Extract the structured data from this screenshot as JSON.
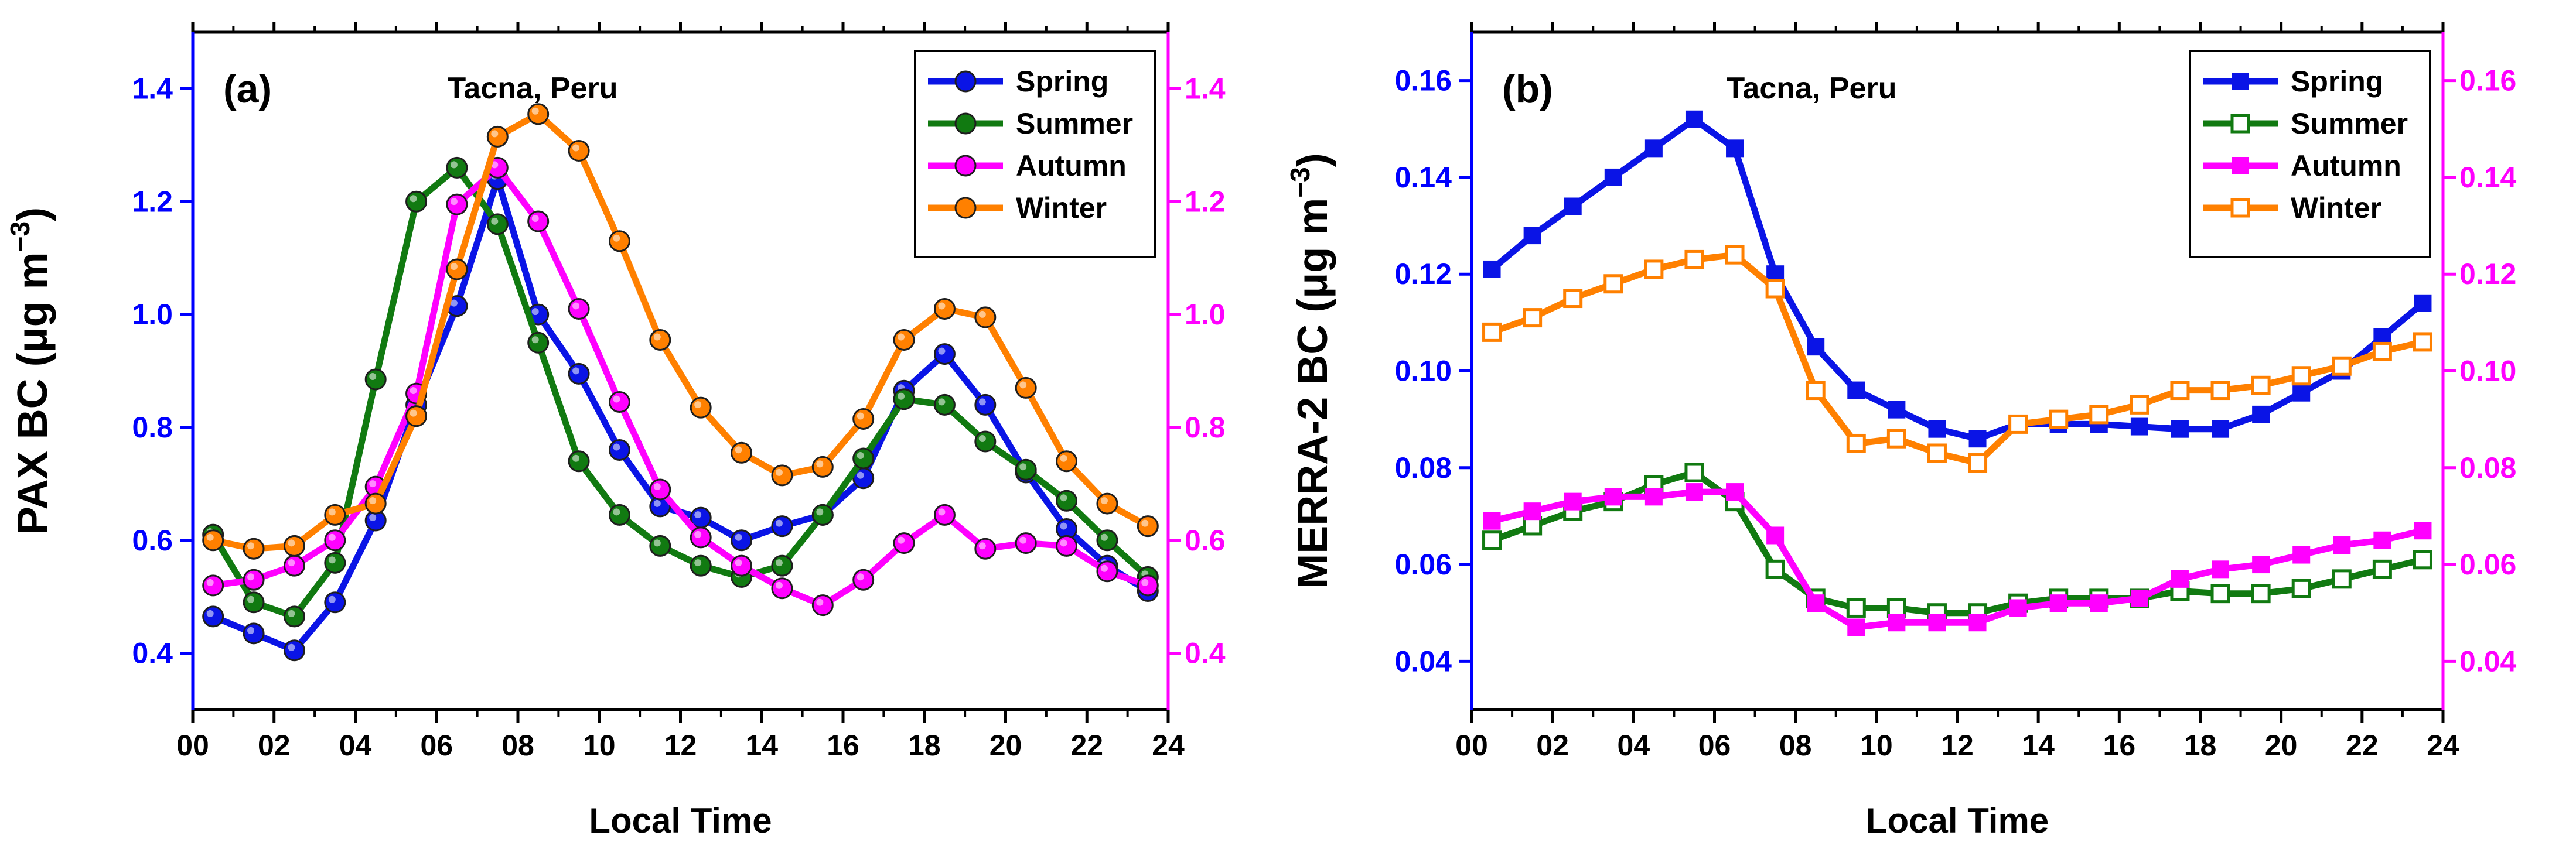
{
  "colors": {
    "spring": "#0a14e6",
    "summer": "#117a11",
    "autumn": "#ff00ff",
    "winter": "#ff8000",
    "left_axis": "#0000ff",
    "right_axis": "#ff00ff",
    "black": "#000000"
  },
  "chart_data": [
    {
      "type": "line",
      "panel_label": "(a)",
      "title": "Tacna, Peru",
      "xlabel": "Local Time",
      "ylabel_main": "PAX BC (",
      "ylabel_unit": "μg m",
      "ylabel_exp": "−3",
      "ylabel_close": ")",
      "xlim": [
        0,
        24
      ],
      "ylim": [
        0.3,
        1.5
      ],
      "x_ticks": [
        "00",
        "02",
        "04",
        "06",
        "08",
        "10",
        "12",
        "14",
        "16",
        "18",
        "20",
        "22",
        "24"
      ],
      "y_ticks": [
        "0.4",
        "0.6",
        "0.8",
        "1.0",
        "1.2",
        "1.4"
      ],
      "y_tick_values": [
        0.4,
        0.6,
        0.8,
        1.0,
        1.2,
        1.4
      ],
      "marker": "circle",
      "x": [
        0.5,
        1.5,
        2.5,
        3.5,
        4.5,
        5.5,
        6.5,
        7.5,
        8.5,
        9.5,
        10.5,
        11.5,
        12.5,
        13.5,
        14.5,
        15.5,
        16.5,
        17.5,
        18.5,
        19.5,
        20.5,
        21.5,
        22.5,
        23.5
      ],
      "series": [
        {
          "name": "Spring",
          "color_key": "spring",
          "filled": true,
          "values": [
            0.465,
            0.435,
            0.405,
            0.49,
            0.635,
            0.84,
            1.015,
            1.24,
            1.0,
            0.895,
            0.76,
            0.66,
            0.64,
            0.6,
            0.625,
            0.645,
            0.71,
            0.865,
            0.93,
            0.84,
            0.72,
            0.62,
            0.555,
            0.51
          ]
        },
        {
          "name": "Summer",
          "color_key": "summer",
          "filled": true,
          "values": [
            0.61,
            0.49,
            0.465,
            0.56,
            0.885,
            1.2,
            1.26,
            1.16,
            0.95,
            0.74,
            0.645,
            0.59,
            0.555,
            0.535,
            0.555,
            0.645,
            0.745,
            0.85,
            0.84,
            0.775,
            0.725,
            0.67,
            0.6,
            0.535
          ]
        },
        {
          "name": "Autumn",
          "color_key": "autumn",
          "filled": true,
          "values": [
            0.52,
            0.53,
            0.555,
            0.6,
            0.695,
            0.86,
            1.195,
            1.26,
            1.165,
            1.01,
            0.845,
            0.69,
            0.605,
            0.555,
            0.515,
            0.485,
            0.53,
            0.595,
            0.645,
            0.585,
            0.595,
            0.59,
            0.545,
            0.52
          ]
        },
        {
          "name": "Winter",
          "color_key": "winter",
          "filled": true,
          "values": [
            0.6,
            0.585,
            0.59,
            0.645,
            0.665,
            0.82,
            1.08,
            1.315,
            1.355,
            1.29,
            1.13,
            0.955,
            0.835,
            0.755,
            0.715,
            0.73,
            0.815,
            0.955,
            1.01,
            0.995,
            0.87,
            0.74,
            0.665,
            0.625
          ]
        }
      ],
      "legend": "top-right",
      "secondary_y": {
        "ticks": [
          "0.4",
          "0.6",
          "0.8",
          "1.0",
          "1.2",
          "1.4"
        ],
        "color_key": "right_axis"
      }
    },
    {
      "type": "line",
      "panel_label": "(b)",
      "title": "Tacna, Peru",
      "xlabel": "Local Time",
      "ylabel_main": "MERRA-2 BC (",
      "ylabel_unit": "μg m",
      "ylabel_exp": "−3",
      "ylabel_close": ")",
      "xlim": [
        0,
        24
      ],
      "ylim": [
        0.03,
        0.17
      ],
      "x_ticks": [
        "00",
        "02",
        "04",
        "06",
        "08",
        "10",
        "12",
        "14",
        "16",
        "18",
        "20",
        "22",
        "24"
      ],
      "y_ticks": [
        "0.04",
        "0.06",
        "0.08",
        "0.10",
        "0.12",
        "0.14",
        "0.16"
      ],
      "y_tick_values": [
        0.04,
        0.06,
        0.08,
        0.1,
        0.12,
        0.14,
        0.16
      ],
      "marker": "square",
      "x": [
        0.5,
        1.5,
        2.5,
        3.5,
        4.5,
        5.5,
        6.5,
        7.5,
        8.5,
        9.5,
        10.5,
        11.5,
        12.5,
        13.5,
        14.5,
        15.5,
        16.5,
        17.5,
        18.5,
        19.5,
        20.5,
        21.5,
        22.5,
        23.5
      ],
      "series": [
        {
          "name": "Spring",
          "color_key": "spring",
          "filled": true,
          "values": [
            0.121,
            0.128,
            0.134,
            0.14,
            0.146,
            0.152,
            0.146,
            0.12,
            0.105,
            0.096,
            0.092,
            0.088,
            0.086,
            0.089,
            0.089,
            0.089,
            0.0885,
            0.088,
            0.088,
            0.091,
            0.0955,
            0.1,
            0.107,
            0.114
          ]
        },
        {
          "name": "Summer",
          "color_key": "summer",
          "filled": false,
          "values": [
            0.065,
            0.068,
            0.071,
            0.073,
            0.0765,
            0.079,
            0.073,
            0.059,
            0.053,
            0.051,
            0.051,
            0.05,
            0.05,
            0.052,
            0.053,
            0.053,
            0.053,
            0.0545,
            0.054,
            0.054,
            0.055,
            0.057,
            0.059,
            0.061
          ]
        },
        {
          "name": "Autumn",
          "color_key": "autumn",
          "filled": true,
          "values": [
            0.069,
            0.071,
            0.073,
            0.074,
            0.074,
            0.075,
            0.075,
            0.066,
            0.052,
            0.047,
            0.048,
            0.048,
            0.048,
            0.051,
            0.052,
            0.052,
            0.053,
            0.057,
            0.059,
            0.06,
            0.062,
            0.064,
            0.065,
            0.067
          ]
        },
        {
          "name": "Winter",
          "color_key": "winter",
          "filled": false,
          "values": [
            0.108,
            0.111,
            0.115,
            0.118,
            0.121,
            0.123,
            0.124,
            0.117,
            0.096,
            0.085,
            0.086,
            0.083,
            0.081,
            0.089,
            0.09,
            0.091,
            0.093,
            0.096,
            0.096,
            0.097,
            0.099,
            0.101,
            0.104,
            0.106
          ]
        }
      ],
      "legend": "top-right",
      "secondary_y": {
        "ticks": [
          "0.04",
          "0.06",
          "0.08",
          "0.10",
          "0.12",
          "0.14",
          "0.16"
        ],
        "color_key": "right_axis"
      }
    }
  ]
}
